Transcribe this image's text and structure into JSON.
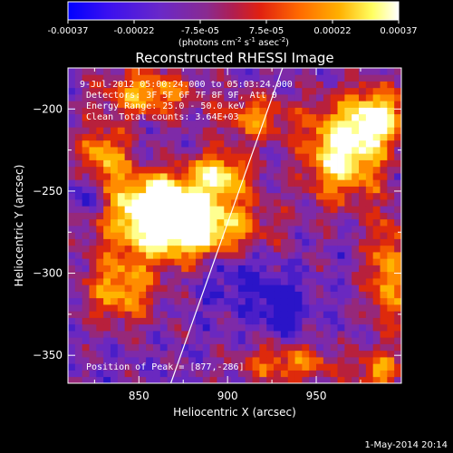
{
  "colorbar": {
    "ticks": [
      "-0.00037",
      "-0.00022",
      "-7.5e-05",
      "7.5e-05",
      "0.00022",
      "0.00037"
    ],
    "unit_label": "(photons cm",
    "unit_sup1": "-2",
    "unit_mid": " s",
    "unit_sup2": "-1",
    "unit_mid2": " asec",
    "unit_sup3": "-2",
    "unit_end": ")",
    "colors": [
      "#0000ff",
      "#5a1ee0",
      "#7a2fb0",
      "#b01e50",
      "#e02010",
      "#ff6a00",
      "#ffb000",
      "#ffff80",
      "#ffffff"
    ]
  },
  "chart_data": {
    "type": "heatmap",
    "title": "Reconstructed RHESSI Image",
    "xlabel": "Heliocentric X (arcsec)",
    "ylabel": "Heliocentric Y (arcsec)",
    "xlim": [
      810,
      998
    ],
    "ylim": [
      -367,
      -175
    ],
    "xticks": [
      850,
      900,
      950
    ],
    "yticks": [
      -200,
      -250,
      -300,
      -350
    ],
    "annotations": [
      "9-Jul-2012 05:00:24.000 to 05:03:24.000",
      "Detectors: 3F 5F 6F 7F 8F 9F, Att 0",
      "Energy Range: 25.0 - 50.0 keV",
      "Clean     Total counts: 3.64E+03"
    ],
    "peak_label": "Position of Peak = [877,-286]",
    "peak": [
      877,
      -286
    ],
    "limb_line": [
      [
        868,
        -367
      ],
      [
        931,
        -175
      ]
    ],
    "hotspots": [
      {
        "x": 875,
        "y": -272,
        "amp": 1.0,
        "sx": 28,
        "sy": 14
      },
      {
        "x": 860,
        "y": -255,
        "amp": 0.75,
        "sx": 14,
        "sy": 12
      },
      {
        "x": 895,
        "y": -240,
        "amp": 0.7,
        "sx": 12,
        "sy": 10
      },
      {
        "x": 965,
        "y": -225,
        "amp": 0.85,
        "sx": 15,
        "sy": 20
      },
      {
        "x": 985,
        "y": -205,
        "amp": 0.7,
        "sx": 10,
        "sy": 12
      },
      {
        "x": 840,
        "y": -310,
        "amp": 0.55,
        "sx": 14,
        "sy": 14
      },
      {
        "x": 830,
        "y": -230,
        "amp": 0.6,
        "sx": 10,
        "sy": 14
      },
      {
        "x": 855,
        "y": -190,
        "amp": 0.55,
        "sx": 18,
        "sy": 10
      },
      {
        "x": 990,
        "y": -300,
        "amp": 0.55,
        "sx": 8,
        "sy": 25
      },
      {
        "x": 935,
        "y": -355,
        "amp": 0.45,
        "sx": 20,
        "sy": 8
      },
      {
        "x": 985,
        "y": -360,
        "amp": 0.5,
        "sx": 8,
        "sy": 8
      },
      {
        "x": 915,
        "y": -205,
        "amp": 0.45,
        "sx": 14,
        "sy": 10
      }
    ],
    "coldspots": [
      {
        "x": 932,
        "y": -320,
        "amp": 0.9,
        "sx": 8,
        "sy": 10
      },
      {
        "x": 820,
        "y": -250,
        "amp": 0.6,
        "sx": 8,
        "sy": 10
      },
      {
        "x": 905,
        "y": -300,
        "amp": 0.5,
        "sx": 15,
        "sy": 15
      }
    ]
  },
  "footer": {
    "date": "1-May-2014 20:14"
  }
}
